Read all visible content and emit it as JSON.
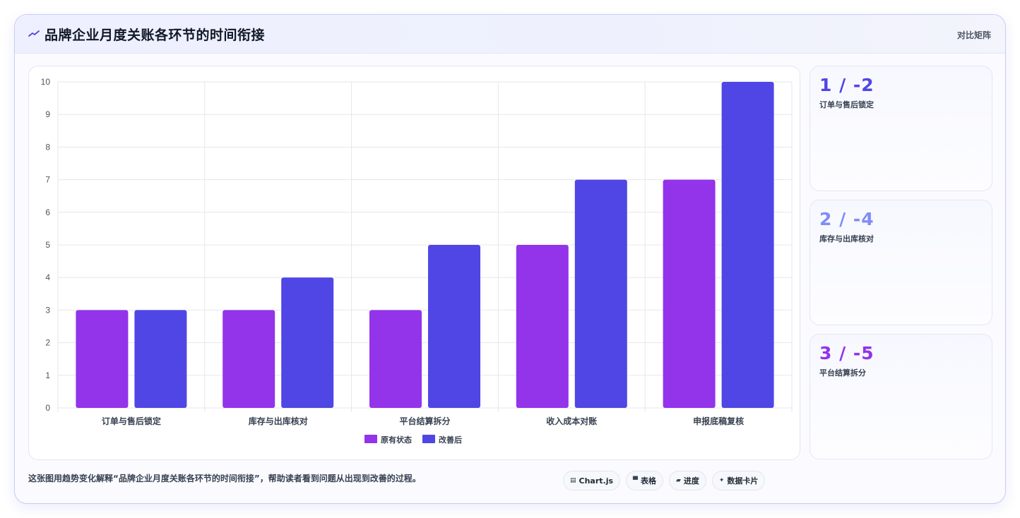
{
  "header": {
    "title": "品牌企业月度关账各环节的时间衔接",
    "mode_label": "对比矩阵",
    "icon": "trend-line-icon"
  },
  "kpis": [
    {
      "value": "1 / -2",
      "label": "订单与售后锁定",
      "color": "#4f46e5"
    },
    {
      "value": "2 / -4",
      "label": "库存与出库核对",
      "color": "#818cf8"
    },
    {
      "value": "3 / -5",
      "label": "平台结算拆分",
      "color": "#9333ea"
    }
  ],
  "caption": "这张图用趋势变化解释“品牌企业月度关账各环节的时间衔接”，帮助读者看到问题从出现到改善的过程。",
  "chips": [
    {
      "icon": "chart-icon",
      "glyph": "▤",
      "label": "Chart.js"
    },
    {
      "icon": "table-icon",
      "glyph": "▀",
      "label": "表格"
    },
    {
      "icon": "progress-icon",
      "glyph": "▰",
      "label": "进度"
    },
    {
      "icon": "card-icon",
      "glyph": "✦",
      "label": "数据卡片"
    }
  ],
  "chart_data": {
    "type": "bar",
    "categories": [
      "订单与售后锁定",
      "库存与出库核对",
      "平台结算拆分",
      "收入成本对账",
      "申报底稿复核"
    ],
    "series": [
      {
        "name": "原有状态",
        "values": [
          3,
          3,
          3,
          5,
          7
        ],
        "color": "#9333ea"
      },
      {
        "name": "改善后",
        "values": [
          3,
          4,
          5,
          7,
          10
        ],
        "color": "#4f46e5"
      }
    ],
    "ylim": [
      0,
      10
    ],
    "yticks": [
      0,
      1,
      2,
      3,
      4,
      5,
      6,
      7,
      8,
      9,
      10
    ],
    "grid": true,
    "legend": "bottom"
  }
}
